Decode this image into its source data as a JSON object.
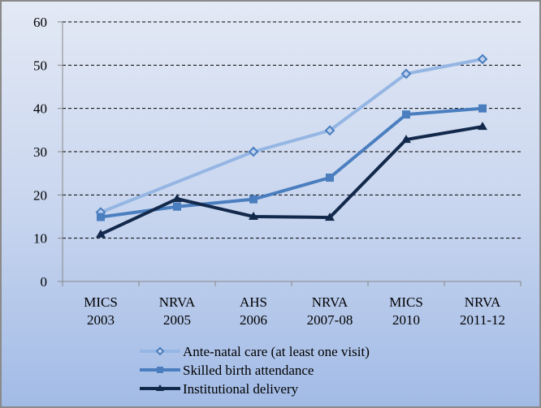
{
  "chart_data": {
    "type": "line",
    "title": "",
    "xlabel": "",
    "ylabel": "",
    "ylim": [
      0,
      60
    ],
    "yticks": [
      0,
      10,
      20,
      30,
      40,
      50,
      60
    ],
    "grid": true,
    "legend_position": "bottom",
    "categories": [
      [
        "MICS",
        "2003"
      ],
      [
        "NRVA",
        "2005"
      ],
      [
        "AHS",
        "2006"
      ],
      [
        "NRVA",
        "2007-08"
      ],
      [
        "MICS",
        "2010"
      ],
      [
        "NRVA",
        "2011-12"
      ]
    ],
    "series": [
      {
        "name": "Ante-natal care (at least one visit)",
        "values": [
          16,
          null,
          30,
          34.9,
          48,
          51.4
        ],
        "color": "#95b6e3",
        "marker": "diamond"
      },
      {
        "name": "Skilled birth attendance",
        "values": [
          14.9,
          17.3,
          19,
          24,
          38.6,
          40
        ],
        "color": "#4a7ebf",
        "marker": "square"
      },
      {
        "name": "Institutional delivery",
        "values": [
          10.9,
          19.1,
          15,
          14.8,
          32.8,
          35.8
        ],
        "color": "#13294b",
        "marker": "triangle"
      }
    ]
  }
}
